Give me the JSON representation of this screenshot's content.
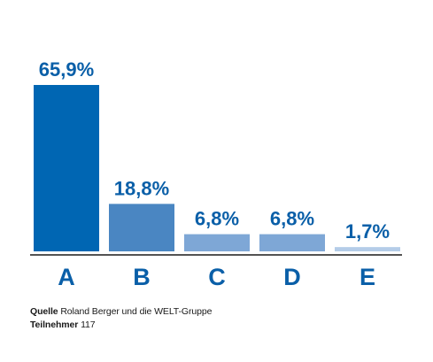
{
  "chart_data": {
    "type": "bar",
    "categories": [
      "A",
      "B",
      "C",
      "D",
      "E"
    ],
    "values": [
      65.9,
      18.8,
      6.8,
      6.8,
      1.7
    ],
    "value_labels": [
      "65,9%",
      "18,8%",
      "6,8%",
      "6,8%",
      "1,7%"
    ],
    "ylim": [
      0,
      65.9
    ],
    "grid": false,
    "legend": "none",
    "colors": [
      "#0066b3",
      "#4a86c2",
      "#7ea7d6",
      "#7ea7d6",
      "#b4cce8"
    ],
    "value_label_color": "#0a5fa8",
    "category_label_color": "#0a5fa8"
  },
  "footer": {
    "source_label": "Quelle",
    "source_text": " Roland Berger und die WELT-Gruppe",
    "participants_label": "Teilnehmer",
    "participants_text": " 117"
  }
}
